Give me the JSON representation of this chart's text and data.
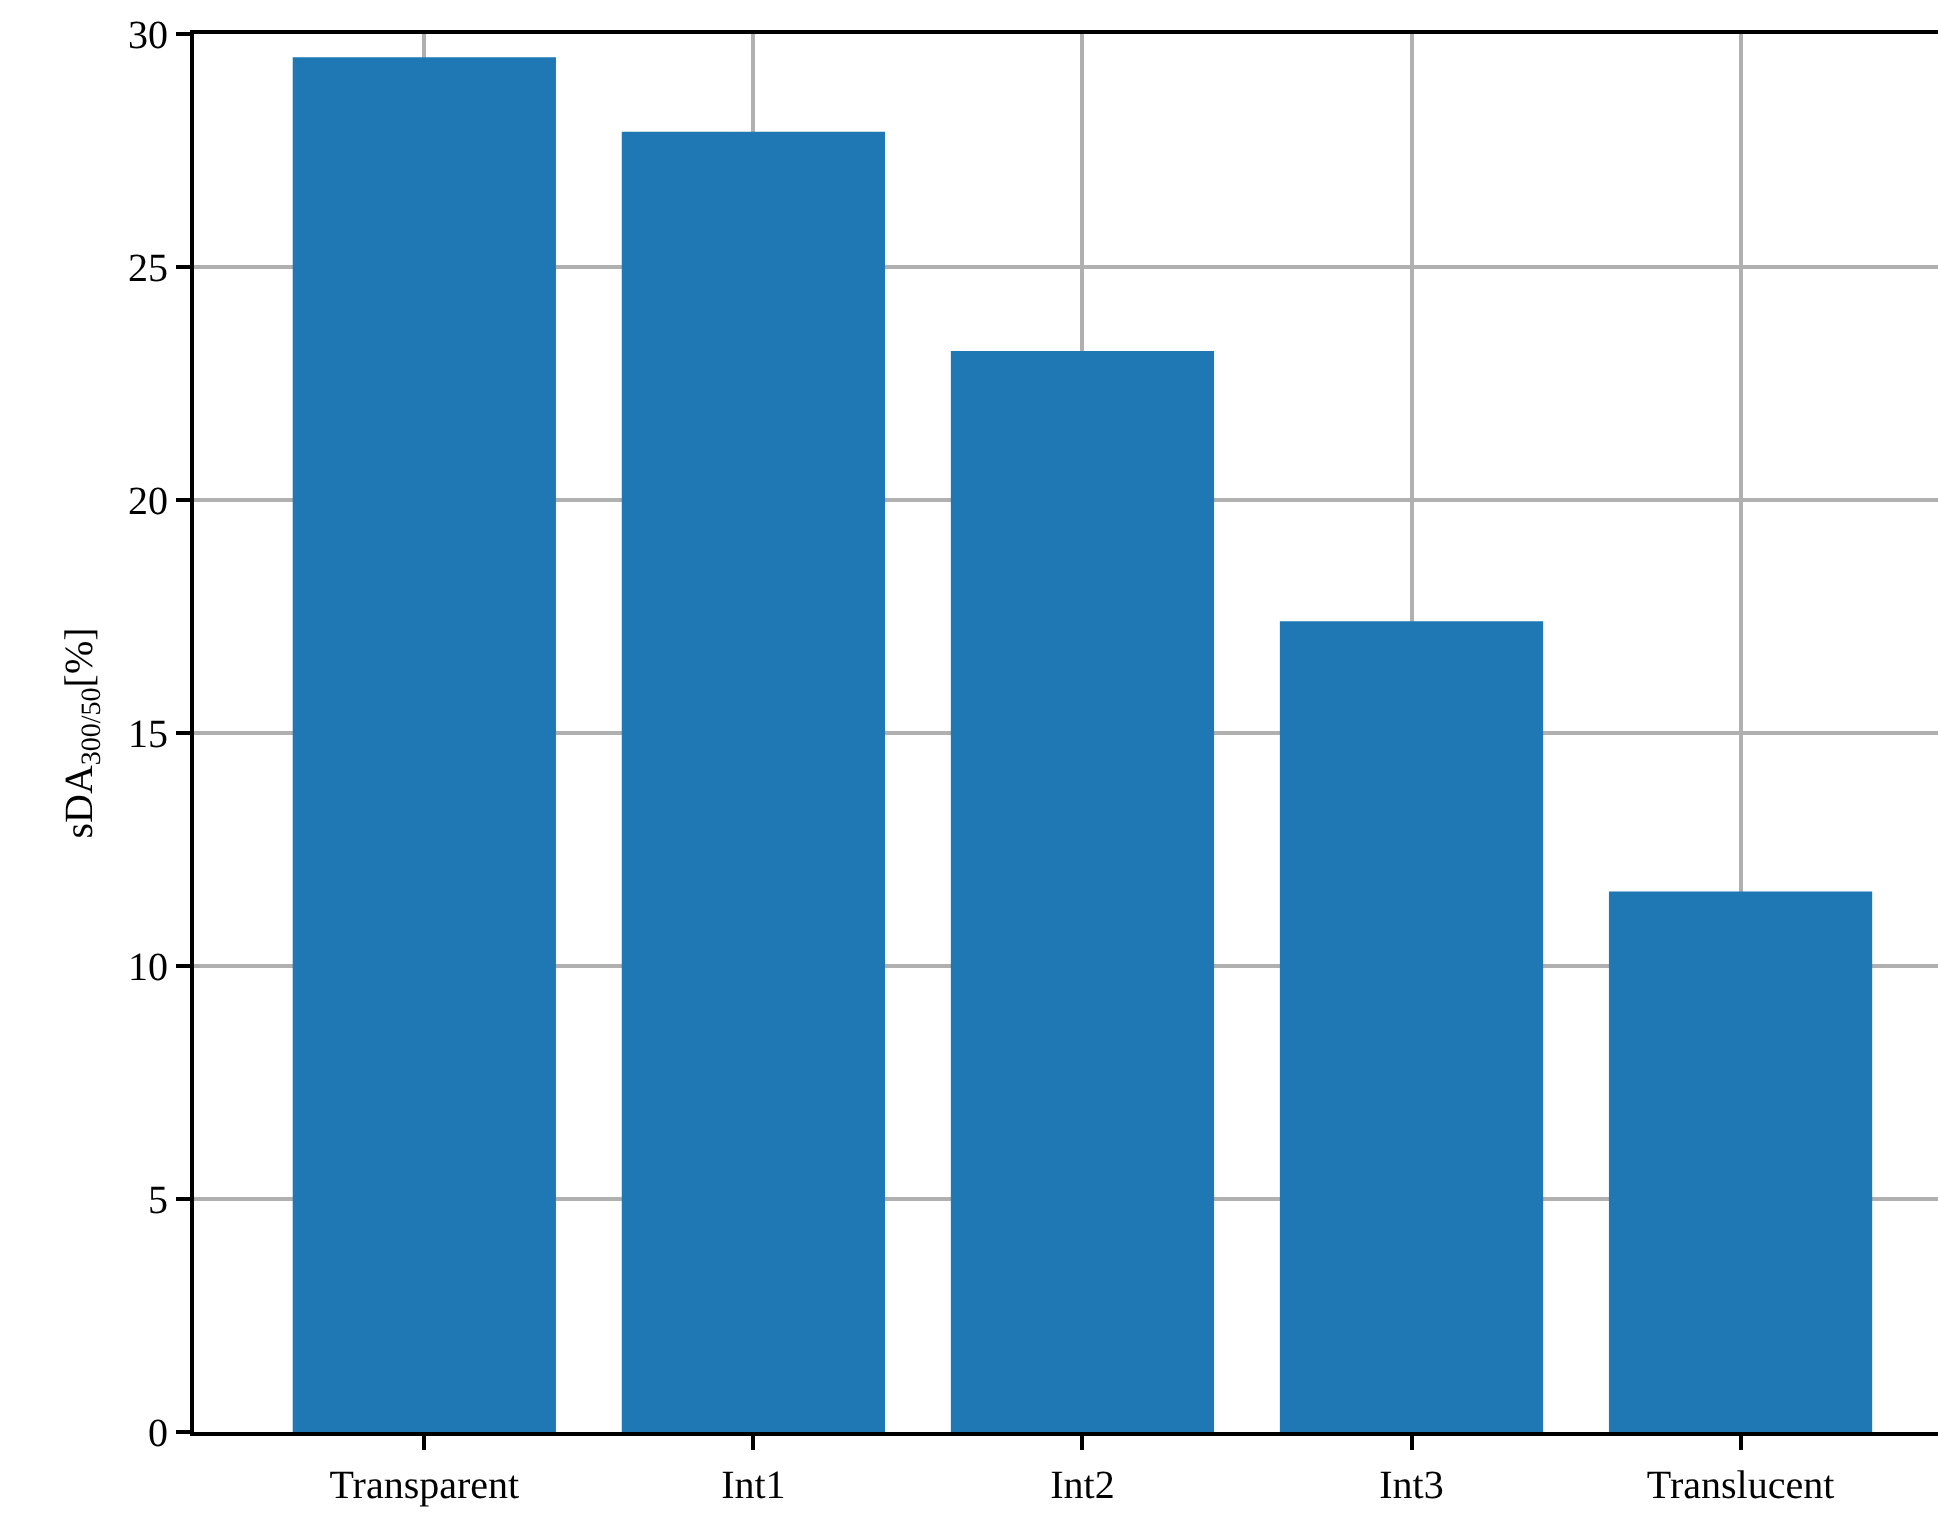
{
  "chart_data": {
    "type": "bar",
    "ylabel": "sDA$_{300/50}$[%]",
    "categories": [
      "Transparent",
      "Int1",
      "Int2",
      "Int3",
      "Translucent"
    ],
    "values": [
      29.5,
      27.9,
      23.2,
      17.4,
      11.6
    ],
    "color": "#1f77b4",
    "ylim": [
      0,
      30
    ],
    "yticks": [
      0,
      5,
      10,
      15,
      20,
      25,
      30
    ],
    "grid": true,
    "legend": false
  }
}
